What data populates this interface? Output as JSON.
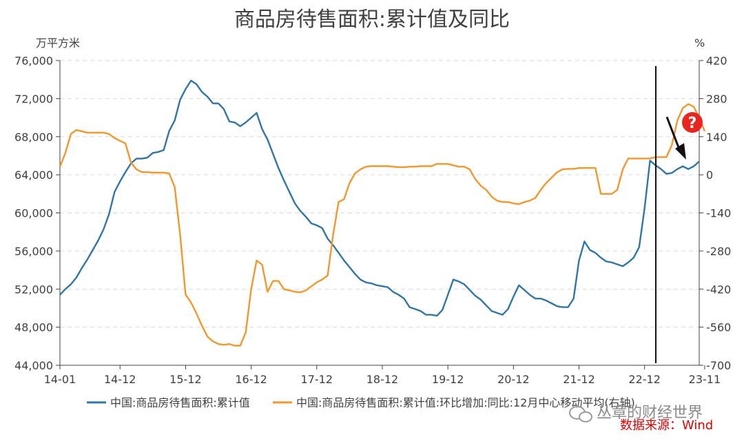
{
  "chart_data": {
    "type": "line",
    "title": "商品房待售面积:累计值及同比",
    "y_left_unit": "万平方米",
    "y_right_unit": "%",
    "x_tick_labels": [
      "14-01",
      "14-12",
      "15-12",
      "16-12",
      "17-12",
      "18-12",
      "19-12",
      "20-12",
      "21-12",
      "22-12",
      "23-11"
    ],
    "y_left_ticks": [
      "44,000",
      "48,000",
      "52,000",
      "56,000",
      "60,000",
      "64,000",
      "68,000",
      "72,000",
      "76,000"
    ],
    "y_right_ticks": [
      "-700",
      "-560",
      "-420",
      "-280",
      "-140",
      "0",
      "140",
      "280",
      "420"
    ],
    "ylim_left": [
      44000,
      76000
    ],
    "ylim_right": [
      -700,
      420
    ],
    "grid": "horizontal-dashed",
    "legend_position": "bottom",
    "series": [
      {
        "name": "中国:商品房待售面积:累计值",
        "axis": "left",
        "color": "#2e75a8",
        "values": [
          51400,
          52000,
          52500,
          53200,
          54200,
          55100,
          56100,
          57100,
          58300,
          59900,
          62200,
          63300,
          64300,
          65200,
          65700,
          65700,
          65800,
          66300,
          66400,
          66600,
          68600,
          69700,
          71900,
          73000,
          73900,
          73500,
          72700,
          72200,
          71500,
          71500,
          70900,
          69600,
          69500,
          69100,
          69500,
          70000,
          70500,
          68800,
          67700,
          66200,
          64700,
          63400,
          62200,
          61000,
          60200,
          59600,
          58900,
          58700,
          58400,
          57300,
          56600,
          55800,
          55000,
          54300,
          53600,
          53000,
          52700,
          52600,
          52400,
          52300,
          52200,
          51700,
          51400,
          51000,
          50100,
          49900,
          49700,
          49300,
          49300,
          49200,
          49800,
          51400,
          53000,
          52800,
          52500,
          51900,
          51300,
          50900,
          50300,
          49700,
          49500,
          49300,
          49900,
          51200,
          52400,
          51900,
          51400,
          51000,
          51000,
          50800,
          50500,
          50200,
          50100,
          50100,
          51000,
          55000,
          57000,
          56100,
          55800,
          55300,
          54900,
          54800,
          54600,
          54400,
          54800,
          55300,
          56400,
          60500,
          65500,
          65000,
          64600,
          64100,
          64200,
          64600,
          64900,
          64600,
          64900,
          65400
        ]
      },
      {
        "name": "中国:商品房待售面积:累计值:环比增加:同比:12月中心移动平均(右轴)",
        "axis": "right",
        "color": "#f5962a",
        "values": [
          30,
          80,
          150,
          165,
          160,
          155,
          155,
          155,
          155,
          150,
          135,
          125,
          115,
          45,
          20,
          10,
          10,
          8,
          8,
          8,
          5,
          -45,
          -220,
          -440,
          -470,
          -510,
          -555,
          -595,
          -612,
          -622,
          -625,
          -622,
          -628,
          -628,
          -580,
          -420,
          -315,
          -330,
          -430,
          -390,
          -390,
          -420,
          -425,
          -430,
          -432,
          -425,
          -410,
          -395,
          -385,
          -370,
          -220,
          -100,
          -90,
          -30,
          5,
          20,
          30,
          32,
          32,
          32,
          32,
          30,
          28,
          28,
          30,
          30,
          32,
          32,
          32,
          40,
          40,
          40,
          35,
          30,
          30,
          20,
          -15,
          -40,
          -55,
          -80,
          -95,
          -100,
          -100,
          -105,
          -108,
          -100,
          -95,
          -85,
          -55,
          -30,
          -10,
          10,
          20,
          22,
          22,
          25,
          25,
          25,
          25,
          -70,
          -70,
          -70,
          -55,
          20,
          60,
          60,
          60,
          60,
          60,
          65,
          65,
          65,
          110,
          200,
          245,
          260,
          250,
          210,
          160
        ]
      }
    ],
    "annotations": {
      "question_mark": "?",
      "watermark": "丛章的财经世界",
      "source": "数据来源：Wind"
    }
  }
}
